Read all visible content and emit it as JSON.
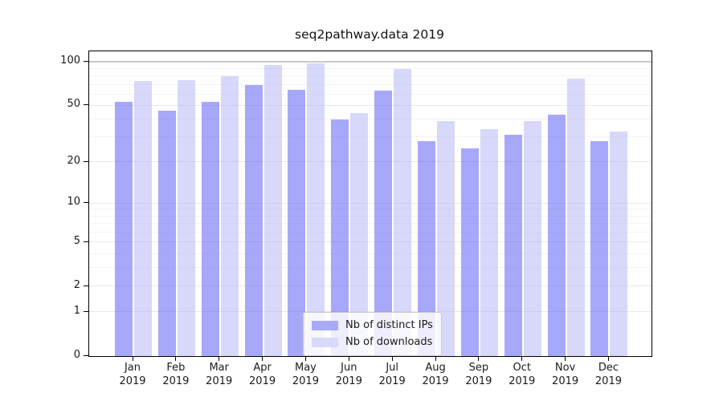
{
  "title": "seq2pathway.data 2019",
  "colors": {
    "ips_bar": "rgba(82,82,245,0.5)",
    "downloads_bar": "rgba(178,178,245,0.5)",
    "ips_swatch": "#a9a9fa",
    "downloads_swatch": "#d9d9fa",
    "grid_minor": "#f4f4f4",
    "grid_major": "#e9e9e9",
    "grid_emphasis": "#c8c8c8",
    "axis": "#000000",
    "text": "#1a1a1a"
  },
  "chart_data": {
    "type": "bar",
    "title": "seq2pathway.data 2019",
    "categories": [
      "Jan 2019",
      "Feb 2019",
      "Mar 2019",
      "Apr 2019",
      "May 2019",
      "Jun 2019",
      "Jul 2019",
      "Aug 2019",
      "Sep 2019",
      "Oct 2019",
      "Nov 2019",
      "Dec 2019"
    ],
    "series": [
      {
        "name": "Nb of distinct IPs",
        "values": [
          53,
          46,
          53,
          69,
          64,
          40,
          63,
          28,
          25,
          31,
          43,
          28
        ]
      },
      {
        "name": "Nb of downloads",
        "values": [
          74,
          75,
          80,
          95,
          97,
          44,
          89,
          39,
          34,
          39,
          77,
          33
        ]
      }
    ],
    "yscale": "log1p",
    "ylim": [
      0,
      101
    ],
    "yticks": [
      0,
      1,
      2,
      5,
      10,
      20,
      50,
      100
    ],
    "minor_gridlines": [
      3,
      4,
      6,
      7,
      8,
      9,
      30,
      40,
      60,
      70,
      80,
      90
    ],
    "xlabel": "",
    "ylabel": "",
    "grid": true,
    "legend_position": "lower center"
  }
}
